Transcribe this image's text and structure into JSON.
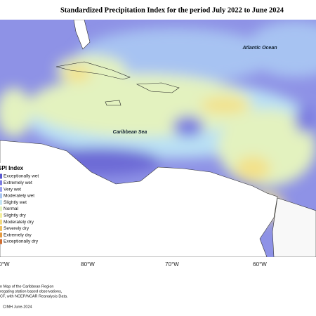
{
  "title": "Standardized Precipitation Index for the period July 2022 to June 2024",
  "labels": {
    "atlantic": "Atlantic Ocean",
    "caribbean": "Caribbean Sea"
  },
  "legend": {
    "title": "SPI Index",
    "items": [
      {
        "label": "Exceptionally wet",
        "color": "#5a58d0"
      },
      {
        "label": "Extremely wet",
        "color": "#7b7be2"
      },
      {
        "label": "Very wet",
        "color": "#979ff0"
      },
      {
        "label": "Moderately wet",
        "color": "#a8c6f2"
      },
      {
        "label": "Slightly wet",
        "color": "#c4e6f5"
      },
      {
        "label": "Normal",
        "color": "#e5f3c0"
      },
      {
        "label": "Slightly dry",
        "color": "#f4ef9c"
      },
      {
        "label": "Moderately dry",
        "color": "#f3da80"
      },
      {
        "label": "Severely dry",
        "color": "#efbf5f"
      },
      {
        "label": "Extremely dry",
        "color": "#e59a40"
      },
      {
        "label": "Exceptionally dry",
        "color": "#cf6c30"
      }
    ]
  },
  "longitudes": [
    "0°W",
    "80°W",
    "70°W",
    "60°W"
  ],
  "footer": {
    "notes": [
      "n Map of the Caribbean Region",
      "regating station based observations,",
      "CF, with NCEP/NCAR Reanalysis Data."
    ],
    "credit": "CIMH June-2024"
  }
}
